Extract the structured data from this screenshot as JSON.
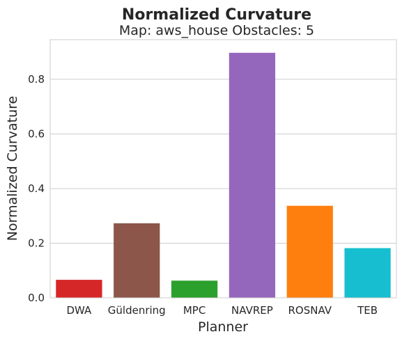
{
  "chart_data": {
    "type": "bar",
    "title": "Normalized Curvature",
    "subtitle": "Map: aws_house Obstacles: 5",
    "xlabel": "Planner",
    "ylabel": "Normalized Curvature",
    "categories": [
      "DWA",
      "Güldenring",
      "MPC",
      "NAVREP",
      "ROSNAV",
      "TEB"
    ],
    "values": [
      0.066,
      0.273,
      0.063,
      0.897,
      0.337,
      0.182
    ],
    "colors": [
      "#d62728",
      "#8c564b",
      "#2ca02c",
      "#9467bd",
      "#ff7f0e",
      "#17becf"
    ],
    "ylim": [
      0,
      0.945
    ],
    "yticks": [
      0.0,
      0.2,
      0.4,
      0.6,
      0.8
    ],
    "ytick_labels": [
      "0.0",
      "0.2",
      "0.4",
      "0.6",
      "0.8"
    ],
    "grid": true,
    "grid_axis": "y"
  }
}
